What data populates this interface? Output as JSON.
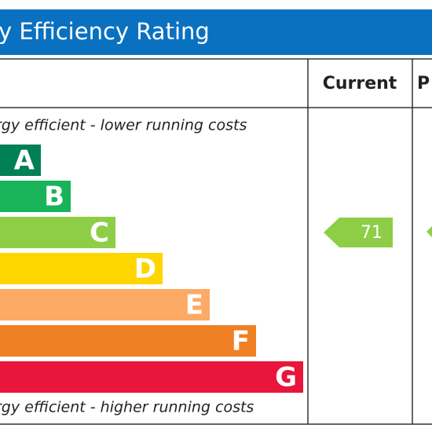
{
  "title": "y Efficiency Rating",
  "header": {
    "current": "Current",
    "potential": "P"
  },
  "top_note": "rgy efficient - lower running costs",
  "bottom_note": "rgy efficient - higher running costs",
  "bands": [
    {
      "letter": "A",
      "color": "#008054"
    },
    {
      "letter": "B",
      "color": "#19b459"
    },
    {
      "letter": "C",
      "color": "#8dce46"
    },
    {
      "letter": "D",
      "color": "#ffd500"
    },
    {
      "letter": "E",
      "color": "#fcaa65"
    },
    {
      "letter": "F",
      "color": "#ef8023"
    },
    {
      "letter": "G",
      "color": "#e9153b"
    }
  ],
  "current": {
    "value": 71,
    "color": "#8dce46"
  }
}
